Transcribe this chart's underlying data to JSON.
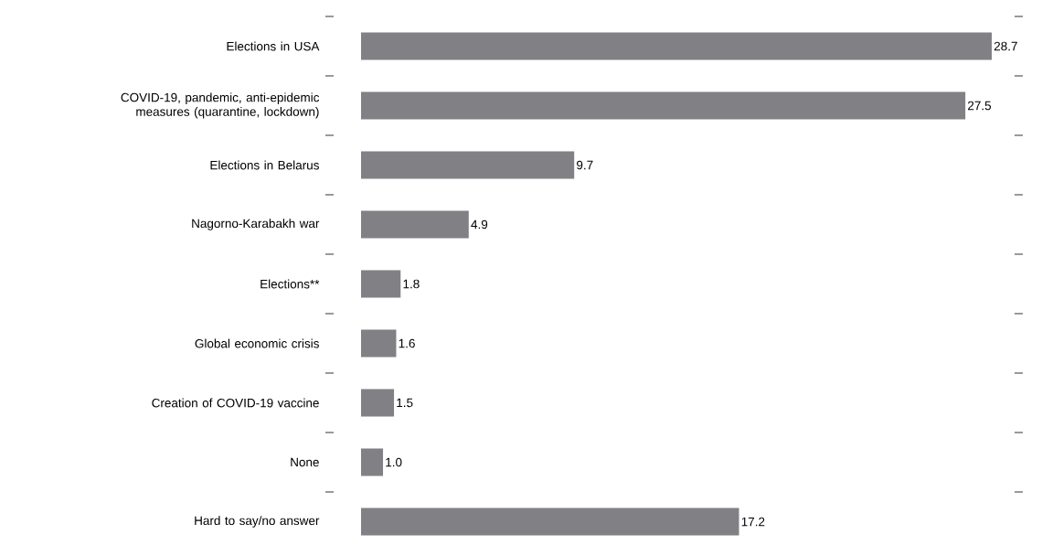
{
  "chart_data": {
    "type": "bar",
    "orientation": "horizontal",
    "categories": [
      "Elections in USA",
      "COVID-19, pandemic, anti-epidemic measures (quarantine, lockdown)",
      "Elections in Belarus",
      "Nagorno-Karabakh war",
      "Elections**",
      "Global economic crisis",
      "Creation of COVID-19 vaccine",
      "None",
      "Hard to say/no answer"
    ],
    "values": [
      28.7,
      27.5,
      9.7,
      4.9,
      1.8,
      1.6,
      1.5,
      1.0,
      17.2
    ],
    "value_labels": [
      "28.7",
      "27.5",
      "9.7",
      "4.9",
      "1.8",
      "1.6",
      "1.5",
      "1.0",
      "17.2"
    ],
    "color": "#808085"
  }
}
